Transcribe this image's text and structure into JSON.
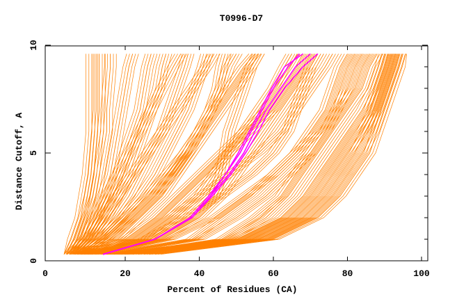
{
  "chart_data": {
    "type": "line",
    "title": "T0996-D7",
    "xlabel": "Percent of Residues (CA)",
    "ylabel": "Distance Cutoff, A",
    "xlim": [
      0,
      100
    ],
    "ylim": [
      0,
      10
    ],
    "xticks": [
      "0",
      "20",
      "40",
      "60",
      "80",
      "100"
    ],
    "yticks": [
      "0",
      "5",
      "10"
    ],
    "grid": false,
    "colors": {
      "models": "#ff8000",
      "highlight": "#ff00ff"
    },
    "y": [
      0.3,
      1,
      2,
      3,
      4,
      5,
      6,
      7,
      8,
      9,
      9.6
    ],
    "series": [
      {
        "name": "model",
        "group": "right",
        "x": [
          15,
          50,
          62,
          68,
          72,
          76,
          80,
          84,
          87,
          89,
          90
        ]
      },
      {
        "name": "model",
        "group": "right",
        "x": [
          18,
          52,
          64,
          70,
          74,
          78,
          82,
          86,
          88,
          90,
          91
        ]
      },
      {
        "name": "model",
        "group": "right",
        "x": [
          20,
          54,
          66,
          72,
          76,
          80,
          84,
          87,
          89,
          91,
          92
        ]
      },
      {
        "name": "model",
        "group": "right",
        "x": [
          22,
          56,
          68,
          74,
          78,
          82,
          85,
          88,
          90,
          92,
          93
        ]
      },
      {
        "name": "model",
        "group": "right",
        "x": [
          25,
          58,
          70,
          76,
          80,
          84,
          87,
          89,
          91,
          93,
          94
        ]
      },
      {
        "name": "model",
        "group": "right",
        "x": [
          28,
          60,
          72,
          78,
          82,
          86,
          88,
          90,
          92,
          94,
          95
        ]
      },
      {
        "name": "model",
        "group": "right",
        "x": [
          17,
          48,
          58,
          64,
          68,
          72,
          76,
          80,
          84,
          86,
          88
        ]
      },
      {
        "name": "model",
        "group": "right",
        "x": [
          19,
          46,
          55,
          62,
          66,
          70,
          74,
          78,
          82,
          84,
          86
        ]
      },
      {
        "name": "model",
        "group": "right",
        "x": [
          16,
          40,
          50,
          58,
          64,
          70,
          74,
          77,
          80,
          82,
          84
        ]
      },
      {
        "name": "model",
        "group": "right",
        "x": [
          14,
          38,
          46,
          54,
          60,
          66,
          70,
          74,
          76,
          78,
          80
        ]
      },
      {
        "name": "model",
        "group": "middle",
        "x": [
          12,
          30,
          40,
          46,
          50,
          54,
          58,
          62,
          66,
          70,
          72
        ]
      },
      {
        "name": "model",
        "group": "middle",
        "x": [
          10,
          26,
          34,
          40,
          44,
          48,
          52,
          56,
          60,
          63,
          65
        ]
      },
      {
        "name": "model",
        "group": "middle",
        "x": [
          9,
          22,
          30,
          36,
          42,
          48,
          54,
          60,
          64,
          68,
          70
        ]
      },
      {
        "name": "model",
        "group": "middle",
        "x": [
          8,
          20,
          28,
          34,
          40,
          46,
          52,
          58,
          62,
          66,
          68
        ]
      },
      {
        "name": "model",
        "group": "middle",
        "x": [
          11,
          28,
          38,
          44,
          46,
          47,
          48,
          50,
          52,
          54,
          56
        ]
      },
      {
        "name": "model",
        "group": "middle",
        "x": [
          10,
          24,
          32,
          40,
          48,
          56,
          62,
          66,
          70,
          74,
          76
        ]
      },
      {
        "name": "model",
        "group": "middle",
        "x": [
          8,
          18,
          24,
          30,
          34,
          38,
          42,
          46,
          50,
          54,
          56
        ]
      },
      {
        "name": "model",
        "group": "middle",
        "x": [
          7,
          16,
          22,
          28,
          32,
          36,
          40,
          44,
          48,
          52,
          55
        ]
      },
      {
        "name": "model",
        "group": "middle",
        "x": [
          9,
          25,
          36,
          46,
          54,
          60,
          64,
          66,
          68,
          70,
          72
        ]
      },
      {
        "name": "model",
        "group": "middle",
        "x": [
          12,
          32,
          44,
          52,
          60,
          66,
          72,
          76,
          78,
          80,
          82
        ]
      },
      {
        "name": "model",
        "group": "left",
        "x": [
          4,
          6,
          8,
          9,
          10,
          10.5,
          11,
          11,
          11,
          11,
          11
        ]
      },
      {
        "name": "model",
        "group": "left",
        "x": [
          5,
          7,
          9,
          10.5,
          11.5,
          12,
          12.5,
          13,
          13,
          13,
          13
        ]
      },
      {
        "name": "model",
        "group": "left",
        "x": [
          5,
          8,
          10,
          12,
          13,
          14,
          15,
          15,
          15.5,
          16,
          16
        ]
      },
      {
        "name": "model",
        "group": "left",
        "x": [
          6,
          9,
          12,
          14,
          16,
          17,
          18,
          19,
          20,
          21,
          22
        ]
      },
      {
        "name": "model",
        "group": "left",
        "x": [
          6,
          10,
          13,
          16,
          18,
          20,
          22,
          24,
          25,
          26,
          27
        ]
      },
      {
        "name": "model",
        "group": "left",
        "x": [
          7,
          11,
          15,
          18,
          21,
          23,
          25,
          27,
          29,
          30,
          31
        ]
      },
      {
        "name": "model",
        "group": "left",
        "x": [
          7,
          12,
          17,
          21,
          24,
          27,
          30,
          32,
          34,
          36,
          37
        ]
      },
      {
        "name": "model",
        "group": "left",
        "x": [
          8,
          13,
          19,
          24,
          28,
          31,
          34,
          37,
          39,
          41,
          42
        ]
      },
      {
        "name": "model",
        "group": "left",
        "x": [
          8,
          14,
          20,
          26,
          31,
          36,
          40,
          43,
          46,
          48,
          50
        ]
      },
      {
        "name": "model",
        "group": "left",
        "x": [
          9,
          15,
          22,
          28,
          33,
          37,
          40,
          43,
          45,
          46,
          47
        ]
      },
      {
        "name": "model",
        "group": "left",
        "x": [
          6,
          10,
          14,
          18,
          22,
          26,
          30,
          34,
          38,
          42,
          44
        ]
      },
      {
        "name": "model",
        "group": "left",
        "x": [
          5,
          9,
          12,
          15,
          18,
          21,
          24,
          27,
          30,
          33,
          35
        ]
      },
      {
        "name": "highlight",
        "group": "highlight",
        "x": [
          14,
          28,
          38,
          43,
          47,
          51,
          54,
          57,
          60,
          64,
          67
        ]
      },
      {
        "name": "highlight",
        "group": "highlight",
        "x": [
          14,
          28,
          38,
          43,
          48,
          52,
          55,
          58,
          62,
          66,
          70
        ]
      },
      {
        "name": "highlight",
        "group": "highlight",
        "x": [
          14,
          28,
          37.5,
          42.5,
          47,
          50.5,
          53.5,
          56.5,
          59.5,
          63,
          68
        ]
      },
      {
        "name": "highlight",
        "group": "highlight",
        "x": [
          14,
          28,
          38,
          43.5,
          48.5,
          52.5,
          56,
          59,
          63,
          68,
          72
        ]
      }
    ]
  }
}
